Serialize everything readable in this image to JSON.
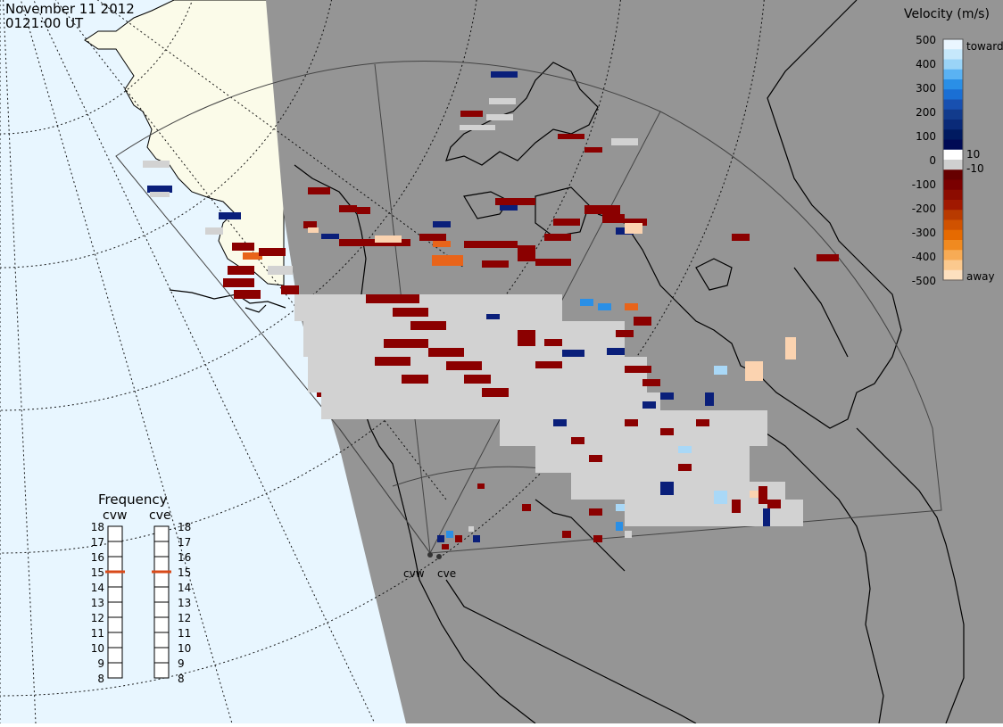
{
  "header": {
    "date": "November 11 2012",
    "time": "0121:00 UT"
  },
  "legend": {
    "title": "Velocity (m/s)",
    "ticks": [
      "500",
      "400",
      "300",
      "200",
      "100",
      "0",
      "-100",
      "-200",
      "-300",
      "-400",
      "-500"
    ],
    "toward_label": "toward",
    "away_label": "away",
    "ten_label": "10",
    "neg_ten_label": "-10",
    "colors": [
      "#eaf6ff",
      "#c6e8fb",
      "#9ad4f7",
      "#5ab2f3",
      "#2a8fe6",
      "#1a6fd4",
      "#1850b0",
      "#123b8c",
      "#0a2a78",
      "#001a60",
      "#000a55",
      "#ffffff",
      "#cfcfcf",
      "#660000",
      "#7a0000",
      "#8c0c00",
      "#a01800",
      "#b83a00",
      "#d05200",
      "#e66a00",
      "#f08a20",
      "#f7ab55",
      "#fbc98e",
      "#fde0bf"
    ]
  },
  "frequency": {
    "title": "Frequency",
    "radars": [
      {
        "name": "cvw",
        "value": 15
      },
      {
        "name": "cve",
        "value": 15
      }
    ],
    "levels": [
      "18",
      "17",
      "16",
      "15",
      "14",
      "13",
      "12",
      "11",
      "10",
      "9",
      "8"
    ],
    "marker_color": "#d84a1a"
  },
  "radars": {
    "site_labels": [
      "cvw",
      "cve"
    ]
  },
  "map": {
    "ocean_color": "#e8f6ff",
    "land_color": "#fbfbe9",
    "night_color": "#959595",
    "gray_scatter_color": "#d2d2d2"
  }
}
